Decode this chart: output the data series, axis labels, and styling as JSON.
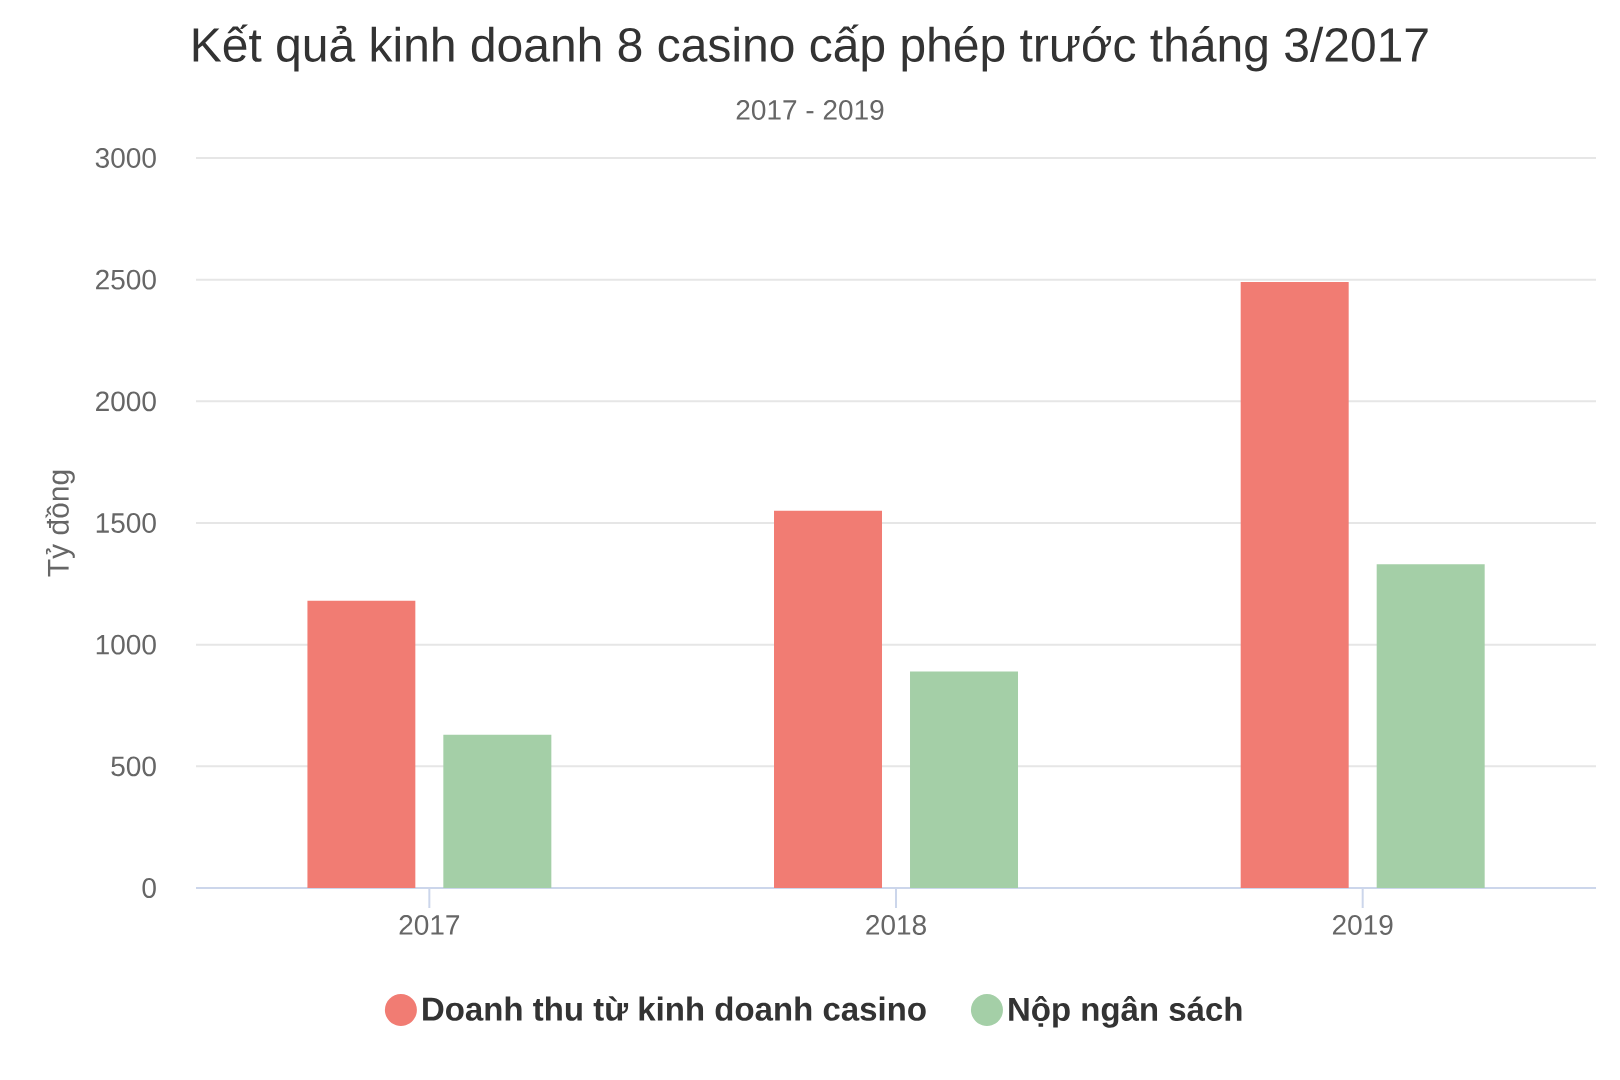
{
  "chart_data": {
    "type": "bar",
    "title": "Kết quả kinh doanh 8 casino cấp phép trước tháng 3/2017",
    "subtitle": "2017 - 2019",
    "ylabel": "Tỷ đồng",
    "categories": [
      "2017",
      "2018",
      "2019"
    ],
    "series": [
      {
        "name": "Doanh thu từ kinh doanh casino",
        "color": "#f17c73",
        "values": [
          1180,
          1550,
          2490
        ]
      },
      {
        "name": "Nộp ngân sách",
        "color": "#a4cfa7",
        "values": [
          630,
          890,
          1330
        ]
      }
    ],
    "ylim": [
      0,
      3000
    ],
    "yticks": [
      0,
      500,
      1000,
      1500,
      2000,
      2500,
      3000
    ],
    "grid": "y",
    "legend": "bottom"
  }
}
